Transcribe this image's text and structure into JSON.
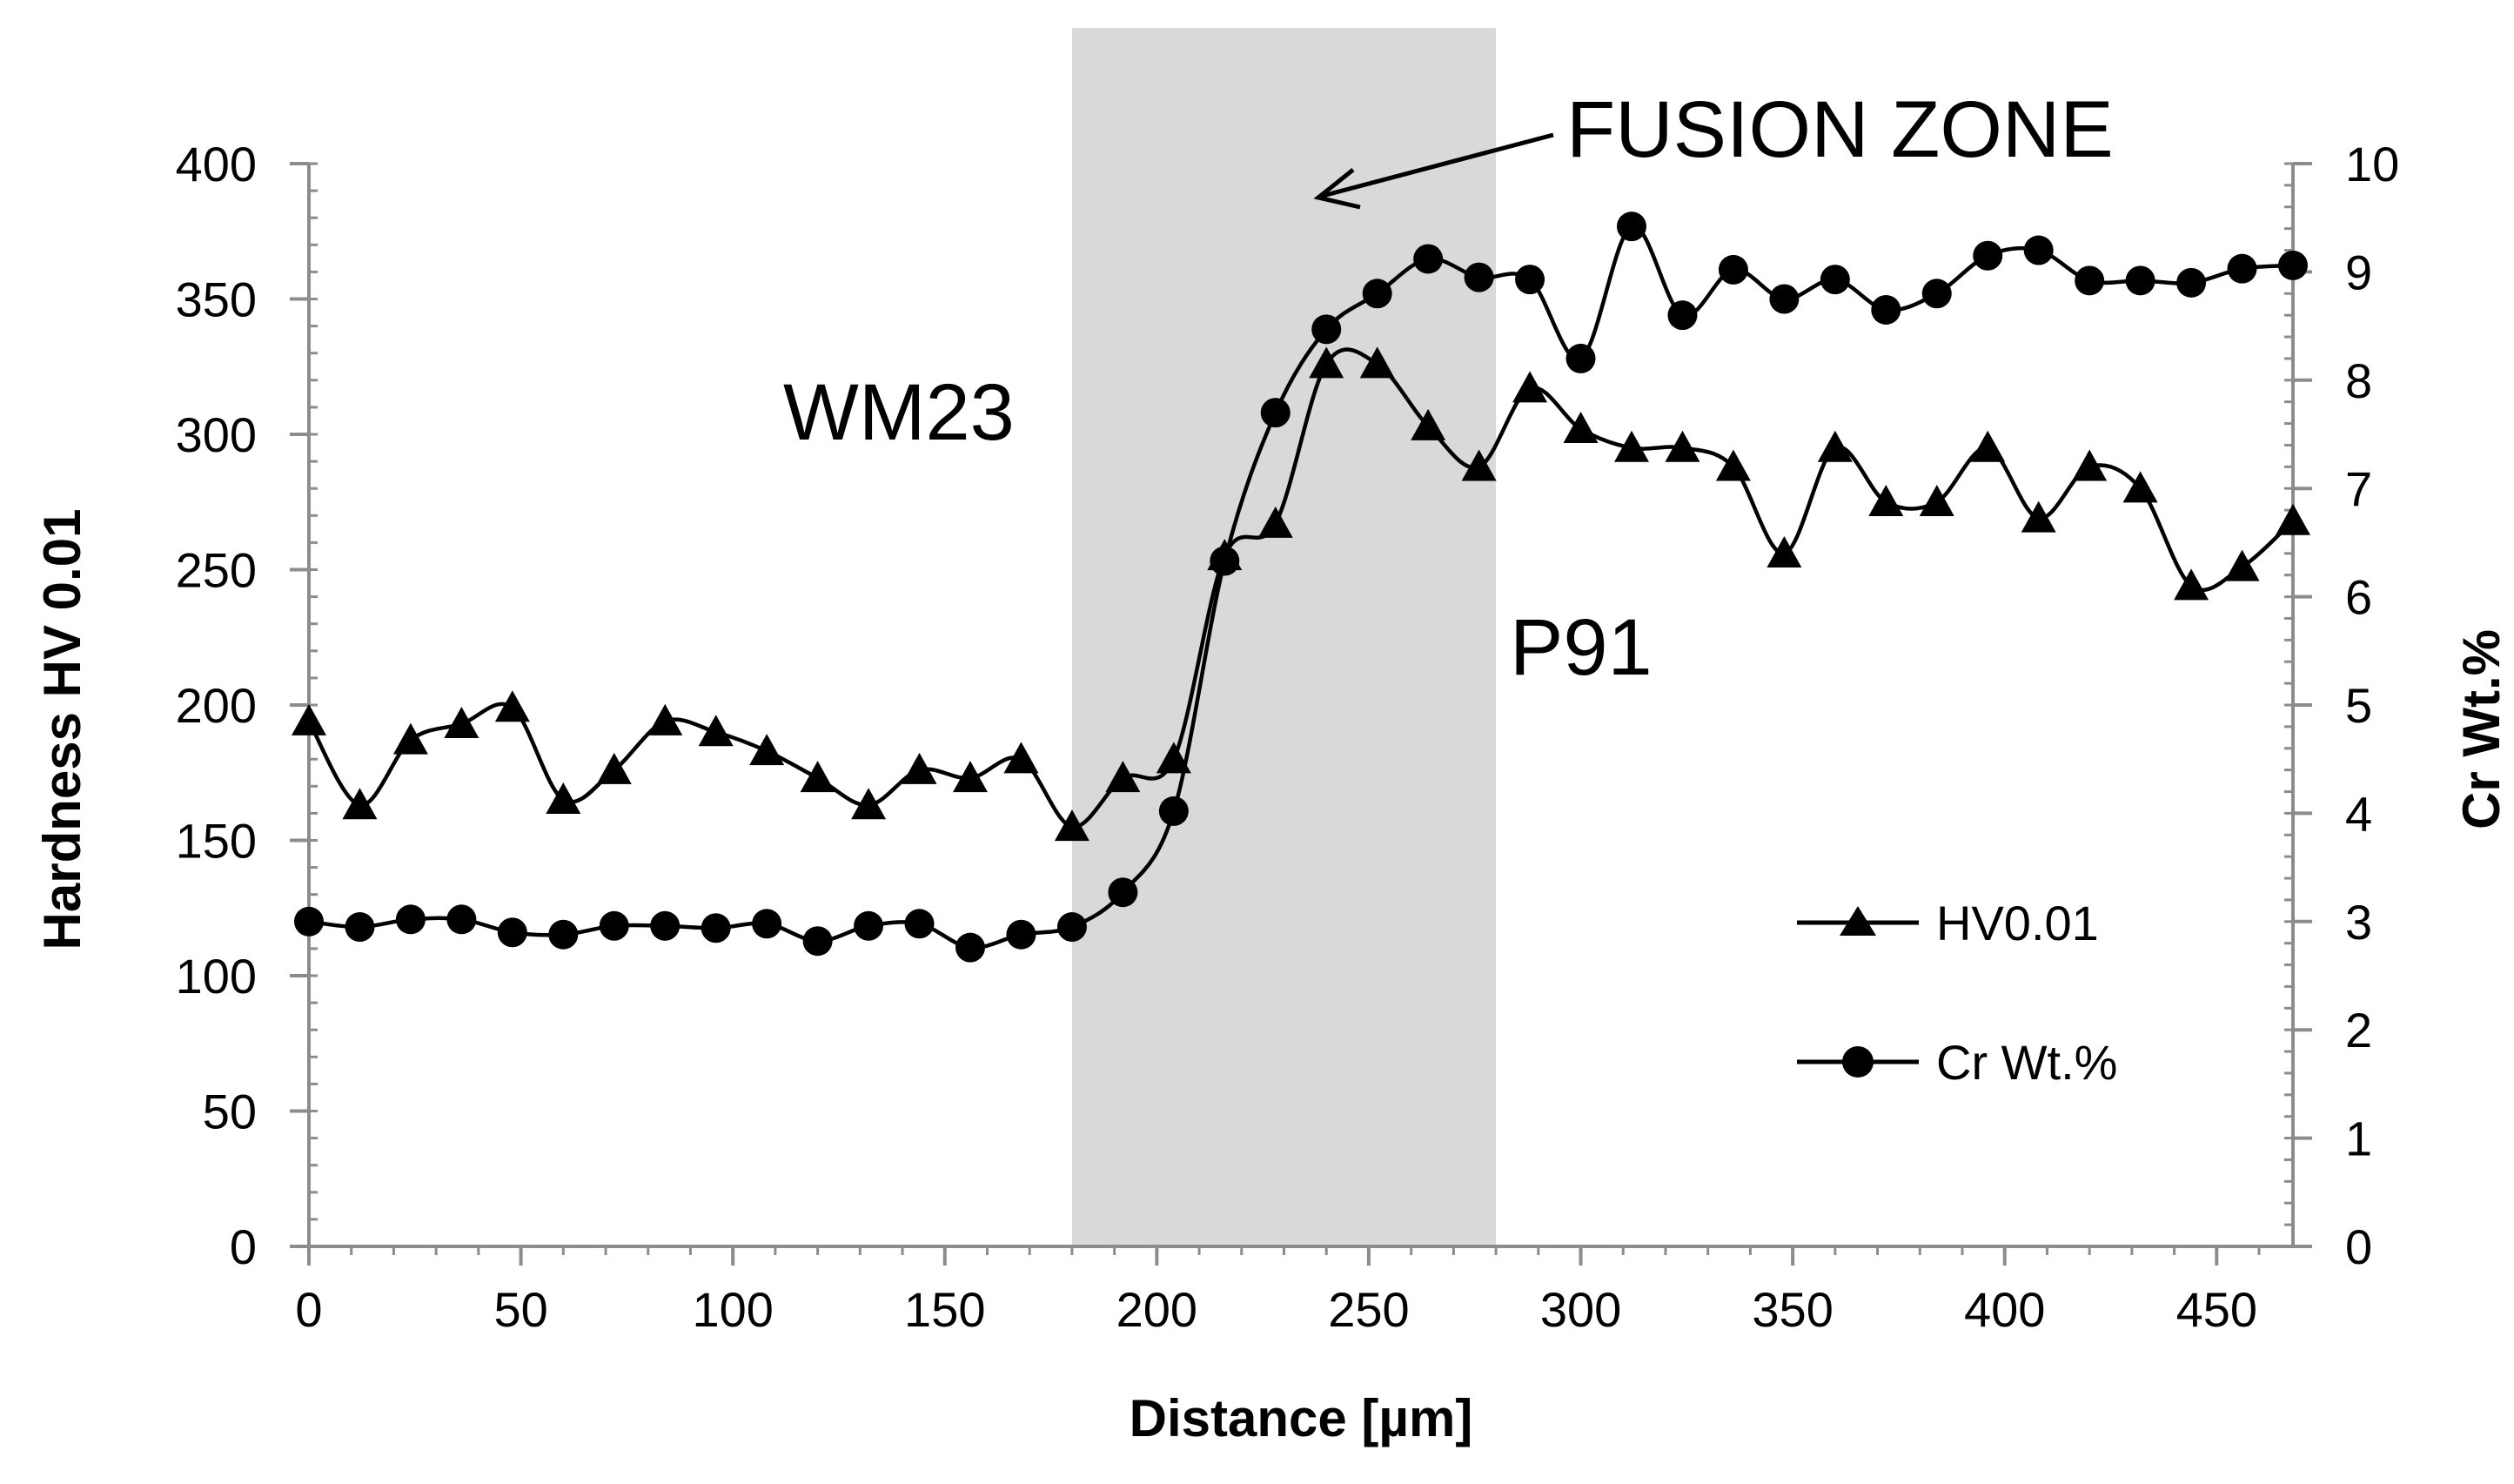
{
  "chart_data": {
    "type": "line",
    "title": "",
    "xlabel": "Distance [µm]",
    "ylabel_left": "Hardness HV 0.01",
    "ylabel_right": "Cr Wt.%",
    "xlim": [
      0,
      468
    ],
    "ylim_left": [
      0,
      400
    ],
    "ylim_right": [
      0,
      10
    ],
    "x_ticks": [
      0,
      50,
      100,
      150,
      200,
      250,
      300,
      350,
      400,
      450
    ],
    "y_left_ticks": [
      0,
      50,
      100,
      150,
      200,
      250,
      300,
      350,
      400
    ],
    "y_right_ticks": [
      0,
      1,
      2,
      3,
      4,
      5,
      6,
      7,
      8,
      9,
      10
    ],
    "grid": false,
    "legend_position": "right-middle",
    "shaded_region": {
      "label": "FUSION ZONE",
      "x_start": 180,
      "x_end": 280,
      "color": "#d9d9d9"
    },
    "annotations": [
      "WM23",
      "P91",
      "FUSION ZONE"
    ],
    "series": [
      {
        "name": "HV0.01",
        "axis": "left",
        "marker": "triangle",
        "x": [
          0,
          12,
          24,
          36,
          48,
          60,
          72,
          84,
          96,
          108,
          120,
          132,
          144,
          156,
          168,
          180,
          192,
          204,
          216,
          228,
          240,
          252,
          264,
          276,
          288,
          300,
          312,
          324,
          336,
          348,
          360,
          372,
          384,
          396,
          408,
          420,
          432,
          444,
          456,
          468
        ],
        "values": [
          194,
          163,
          187,
          193,
          199,
          165,
          176,
          194,
          190,
          183,
          173,
          163,
          176,
          173,
          180,
          155,
          173,
          180,
          255,
          267,
          326,
          326,
          303,
          288,
          317,
          302,
          295,
          295,
          288,
          256,
          295,
          275,
          275,
          295,
          269,
          288,
          280,
          244,
          251,
          268
        ]
      },
      {
        "name": "Cr Wt.%",
        "axis": "right",
        "marker": "circle",
        "x": [
          0,
          12,
          24,
          36,
          48,
          60,
          72,
          84,
          96,
          108,
          120,
          132,
          144,
          156,
          168,
          180,
          192,
          204,
          216,
          228,
          240,
          252,
          264,
          276,
          288,
          300,
          312,
          324,
          336,
          348,
          360,
          372,
          384,
          396,
          408,
          420,
          432,
          444,
          456,
          468
        ],
        "values": [
          3.0,
          2.95,
          3.02,
          3.02,
          2.9,
          2.88,
          2.96,
          2.96,
          2.94,
          2.98,
          2.82,
          2.96,
          2.98,
          2.76,
          2.88,
          2.95,
          3.27,
          4.02,
          6.33,
          7.7,
          8.47,
          8.8,
          9.12,
          8.95,
          8.93,
          8.2,
          9.42,
          8.6,
          9.02,
          8.75,
          8.93,
          8.65,
          8.8,
          9.15,
          9.2,
          8.92,
          8.92,
          8.9,
          9.03,
          9.06
        ]
      }
    ]
  }
}
